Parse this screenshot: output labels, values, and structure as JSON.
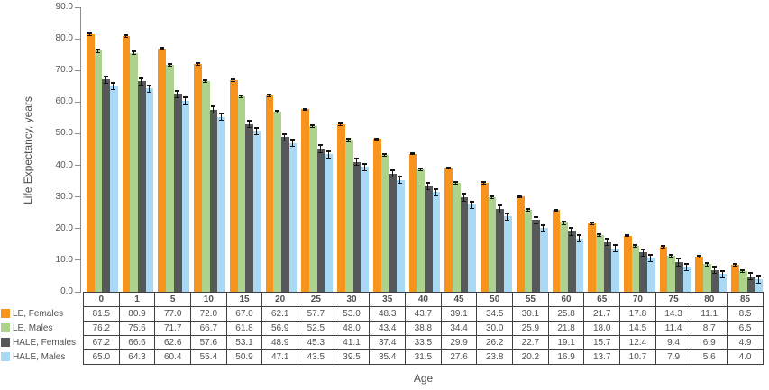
{
  "chart_data": {
    "type": "bar",
    "title": "",
    "xlabel": "Age",
    "ylabel": "Life Expectancy, years",
    "ylim": [
      0,
      90
    ],
    "grid": false,
    "legend_position": "bottom-left",
    "error_bar_color": "#141414",
    "axis_color": "#8a8c8e",
    "text_color": "#4f5052",
    "y_ticks": [
      {
        "value": 90,
        "label": "90.0"
      },
      {
        "value": 80,
        "label": "80.0"
      },
      {
        "value": 70,
        "label": "70.0"
      },
      {
        "value": 60,
        "label": "60.0"
      },
      {
        "value": 50,
        "label": "50.0"
      },
      {
        "value": 40,
        "label": "40.0"
      },
      {
        "value": 30,
        "label": "30.0"
      },
      {
        "value": 20,
        "label": "20.0"
      },
      {
        "value": 10,
        "label": "10.0"
      },
      {
        "value": 0,
        "label": "0.0"
      }
    ],
    "categories": [
      "0",
      "1",
      "5",
      "10",
      "15",
      "20",
      "25",
      "30",
      "35",
      "40",
      "45",
      "50",
      "55",
      "60",
      "65",
      "70",
      "75",
      "80",
      "85"
    ],
    "series": [
      {
        "name": "LE, Females",
        "color": "#F7941E",
        "error_bar": 0.5,
        "values": [
          81.5,
          80.9,
          77.0,
          72.0,
          67.0,
          62.1,
          57.7,
          53.0,
          48.3,
          43.7,
          39.1,
          34.5,
          30.1,
          25.8,
          21.7,
          17.8,
          14.3,
          11.1,
          8.5
        ]
      },
      {
        "name": "LE, Males",
        "color": "#ACD28C",
        "error_bar": 0.6,
        "values": [
          76.2,
          75.6,
          71.7,
          66.7,
          61.8,
          56.9,
          52.5,
          48.0,
          43.4,
          38.8,
          34.4,
          30.0,
          25.9,
          21.8,
          18.0,
          14.5,
          11.4,
          8.7,
          6.5
        ]
      },
      {
        "name": "HALE, Females",
        "color": "#57585A",
        "error_bar": 1.3,
        "values": [
          67.2,
          66.6,
          62.6,
          57.6,
          53.1,
          48.9,
          45.3,
          41.1,
          37.4,
          33.5,
          29.9,
          26.2,
          22.7,
          19.1,
          15.7,
          12.4,
          9.4,
          6.9,
          4.9
        ]
      },
      {
        "name": "HALE, Males",
        "color": "#A9D9F4",
        "error_bar": 1.3,
        "values": [
          65.0,
          64.3,
          60.4,
          55.4,
          50.9,
          47.1,
          43.5,
          39.5,
          35.4,
          31.5,
          27.6,
          23.8,
          20.2,
          16.9,
          13.7,
          10.7,
          7.9,
          5.6,
          4.0
        ]
      }
    ]
  }
}
